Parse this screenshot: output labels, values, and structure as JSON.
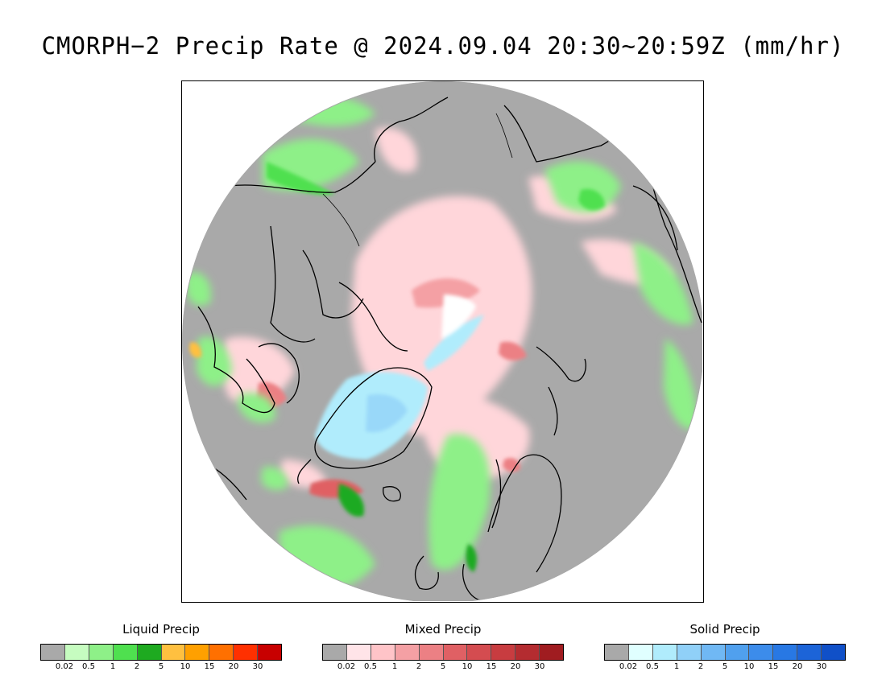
{
  "title": "CMORPH−2 Precip Rate @ 2024.09.04 20:30~20:59Z (mm/hr)",
  "map": {
    "projection": "north-polar-stereographic",
    "background_color": "#a9a9a9",
    "coastline_color": "#000000"
  },
  "legends": [
    {
      "id": "liquid",
      "title": "Liquid Precip",
      "colors": [
        "#a9a9a9",
        "#c6fcc0",
        "#8ef088",
        "#4fe04f",
        "#1eaa20",
        "#ffc040",
        "#ffa000",
        "#ff7000",
        "#ff3000",
        "#c80000"
      ],
      "ticks": [
        "0.02",
        "0.5",
        "1",
        "2",
        "5",
        "10",
        "15",
        "20",
        "30"
      ]
    },
    {
      "id": "mixed",
      "title": "Mixed Precip",
      "colors": [
        "#a9a9a9",
        "#ffe4e8",
        "#ffc4c8",
        "#f4a0a4",
        "#ec8084",
        "#e06064",
        "#d44c50",
        "#c83c40",
        "#b42c30",
        "#a01c20"
      ],
      "ticks": [
        "0.02",
        "0.5",
        "1",
        "2",
        "5",
        "10",
        "15",
        "20",
        "30"
      ]
    },
    {
      "id": "solid",
      "title": "Solid Precip",
      "colors": [
        "#a9a9a9",
        "#e0ffff",
        "#b0ecfc",
        "#90d0f8",
        "#70b8f4",
        "#50a0ee",
        "#3c8ceb",
        "#2878e4",
        "#1c64d8",
        "#1050c8"
      ],
      "ticks": [
        "0.02",
        "0.5",
        "1",
        "2",
        "5",
        "10",
        "15",
        "20",
        "30"
      ]
    }
  ]
}
